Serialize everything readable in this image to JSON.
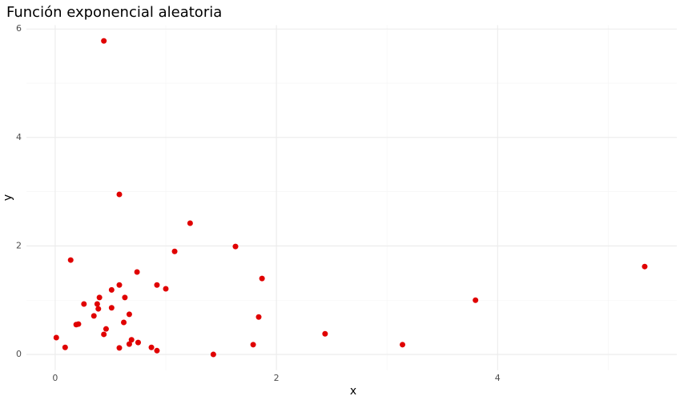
{
  "chart_data": {
    "type": "scatter",
    "title": "Función exponencial aleatoria",
    "x_label": "x",
    "y_label": "y",
    "color": "#e00000",
    "grid": true,
    "xlim": [
      -0.26,
      5.62
    ],
    "ylim": [
      -0.29,
      6.07
    ],
    "xticks": [
      0,
      2,
      4
    ],
    "yticks": [
      0,
      2,
      4,
      6
    ],
    "x": [
      0.44,
      0.58,
      1.22,
      1.63,
      1.08,
      0.14,
      0.74,
      1.87,
      0.58,
      0.92,
      1.0,
      0.51,
      5.33,
      3.8,
      0.63,
      0.4,
      0.26,
      0.38,
      0.39,
      0.51,
      0.67,
      0.35,
      1.84,
      0.62,
      0.21,
      0.19,
      0.46,
      0.44,
      2.44,
      0.01,
      0.69,
      0.75,
      0.67,
      1.79,
      3.14,
      0.09,
      0.87,
      0.58,
      0.92,
      1.43
    ],
    "y": [
      5.78,
      2.95,
      2.42,
      1.99,
      1.9,
      1.74,
      1.52,
      1.4,
      1.28,
      1.28,
      1.21,
      1.19,
      1.62,
      1.0,
      1.05,
      1.05,
      0.93,
      0.93,
      0.84,
      0.86,
      0.74,
      0.71,
      0.69,
      0.59,
      0.56,
      0.55,
      0.47,
      0.37,
      0.38,
      0.31,
      0.27,
      0.22,
      0.19,
      0.18,
      0.18,
      0.13,
      0.13,
      0.12,
      0.07,
      0.0
    ]
  }
}
